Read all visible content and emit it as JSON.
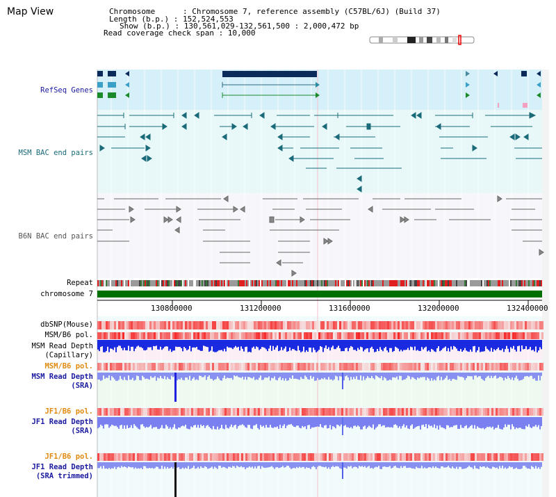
{
  "title": "Map View",
  "info": {
    "line1": "Chromosome      : Chromosome 7, reference assembly (C57BL/6J) (Build 37)",
    "line2": "Length (b.p.) : 152,524,553",
    "line3": "Show (b.p.) : 130,561,029-132,561,500 : 2,000,472 bp",
    "line4": "Read coverage check span : 10,000"
  },
  "tracks": {
    "refseq": "RefSeq Genes",
    "msm_bac": "MSM BAC end pairs",
    "b6n_bac": "B6N BAC end pairs",
    "repeat": "Repeat",
    "chromosome": "chromosome 7",
    "dbsnp": "dbSNP(Mouse)",
    "msm_b6_pol": "MSM/B6 pol.",
    "msm_read_depth_cap_1": "MSM Read Depth",
    "msm_read_depth_cap_2": "(Capillary)",
    "msm_b6_pol_2": "MSM/B6 pol.",
    "msm_read_depth_sra_1": "MSM Read Depth",
    "msm_read_depth_sra_2": "(SRA)",
    "jf1_b6_pol": "JF1/B6 pol.",
    "jf1_read_depth_1": "JF1 Read Depth",
    "jf1_read_depth_2": "(SRA)",
    "jf1_b6_pol_2": "JF1/B6 pol.",
    "jf1_trim_1": "JF1 Read Depth",
    "jf1_trim_2": "(SRA trimmed)"
  },
  "axis_ticks": [
    "130800000",
    "131200000",
    "131600000",
    "132000000",
    "132400000"
  ],
  "colors": {
    "refseq_bg": "#d6f0fa",
    "bac_bg": "#e8f8f8",
    "navy": "#1a1aa0",
    "teal": "#1a6a7a",
    "orange": "#e08a10",
    "chromosome_green": "#007000"
  }
}
